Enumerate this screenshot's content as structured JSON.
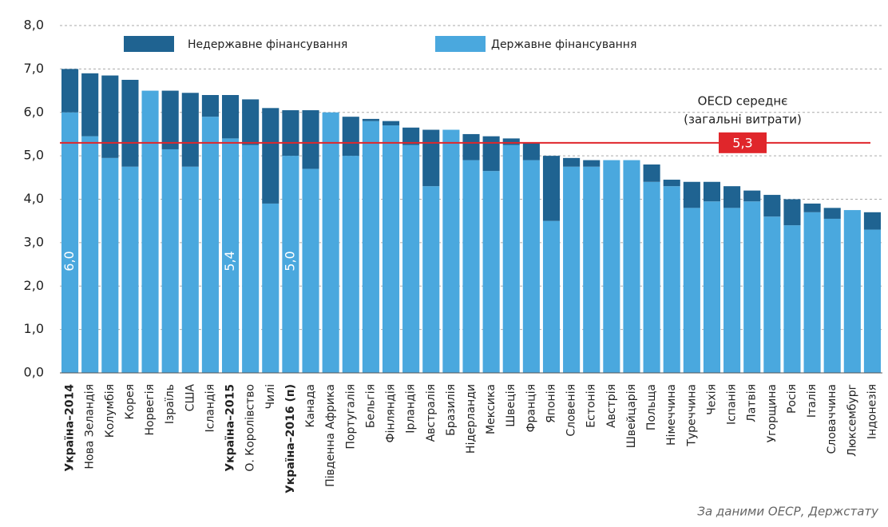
{
  "chart_data": {
    "type": "stacked_bar",
    "categories": [
      "Україна–2014",
      "Нова Зеландія",
      "Колумбія",
      "Корея",
      "Норвегія",
      "Ізраїль",
      "США",
      "Ісландія",
      "Україна–2015",
      "О. Королівство",
      "Чилі",
      "Україна–2016 (п)",
      "Канада",
      "Південна Африка",
      "Португалія",
      "Бельгія",
      "Фінляндія",
      "Ірландія",
      "Австралія",
      "Бразилія",
      "Нідерланди",
      "Мексика",
      "Швеція",
      "Франція",
      "Японія",
      "Словенія",
      "Естонія",
      "Австрія",
      "Швейцарія",
      "Польща",
      "Німеччина",
      "Туреччина",
      "Чехія",
      "Іспанія",
      "Латвія",
      "Угорщина",
      "Росія",
      "Італія",
      "Словаччина",
      "Люксембург",
      "Індонезія"
    ],
    "bold_categories": [
      0,
      8,
      11
    ],
    "series": [
      {
        "name": "Недержавне фінансування",
        "color": "#1f6391",
        "values": [
          1.0,
          1.45,
          1.9,
          2.0,
          0,
          1.35,
          1.7,
          0.5,
          1.0,
          1.05,
          2.2,
          1.05,
          1.35,
          0,
          0.9,
          0.05,
          0.1,
          0.4,
          1.3,
          0,
          0.6,
          0.8,
          0.15,
          0.4,
          1.5,
          0.2,
          0.15,
          0,
          0,
          0.4,
          0.15,
          0.6,
          0.45,
          0.5,
          0.25,
          0.5,
          0.6,
          0.2,
          0.25,
          0,
          0.4
        ]
      },
      {
        "name": "Державне фінансування",
        "color": "#4aa8de",
        "values": [
          6.0,
          5.45,
          4.95,
          4.75,
          6.5,
          5.15,
          4.75,
          5.9,
          5.4,
          5.25,
          3.9,
          5.0,
          4.7,
          6.0,
          5.0,
          5.8,
          5.7,
          5.25,
          4.3,
          5.6,
          4.9,
          4.65,
          5.25,
          4.9,
          3.5,
          4.75,
          4.75,
          4.9,
          4.9,
          4.4,
          4.3,
          3.8,
          3.95,
          3.8,
          3.95,
          3.6,
          3.4,
          3.7,
          3.55,
          3.75,
          3.3
        ],
        "value_labels": [
          "6,0",
          null,
          null,
          null,
          null,
          null,
          null,
          null,
          "5,4",
          null,
          null,
          "5,0",
          null,
          null,
          null,
          null,
          null,
          null,
          null,
          null,
          null,
          null,
          null,
          null,
          null,
          null,
          null,
          null,
          null,
          null,
          null,
          null,
          null,
          null,
          null,
          null,
          null,
          null,
          null,
          null,
          null
        ]
      }
    ],
    "ylim": [
      0,
      8
    ],
    "yticks": [
      {
        "value": 0,
        "label": "0,0"
      },
      {
        "value": 1,
        "label": "1,0"
      },
      {
        "value": 2,
        "label": "2,0"
      },
      {
        "value": 3,
        "label": "3,0"
      },
      {
        "value": 4,
        "label": "4,0"
      },
      {
        "value": 5,
        "label": "5,0"
      },
      {
        "value": 6,
        "label": "6,0"
      },
      {
        "value": 7,
        "label": "7,0"
      },
      {
        "value": 8,
        "label": "8,0"
      }
    ],
    "grid": true,
    "reference_line": {
      "value": 5.3,
      "label": "5,3",
      "color": "#e0262b",
      "text": [
        "OECD середнє",
        "(загальні витрати)"
      ]
    },
    "source": "За даними ОЕСР, Держстату"
  }
}
